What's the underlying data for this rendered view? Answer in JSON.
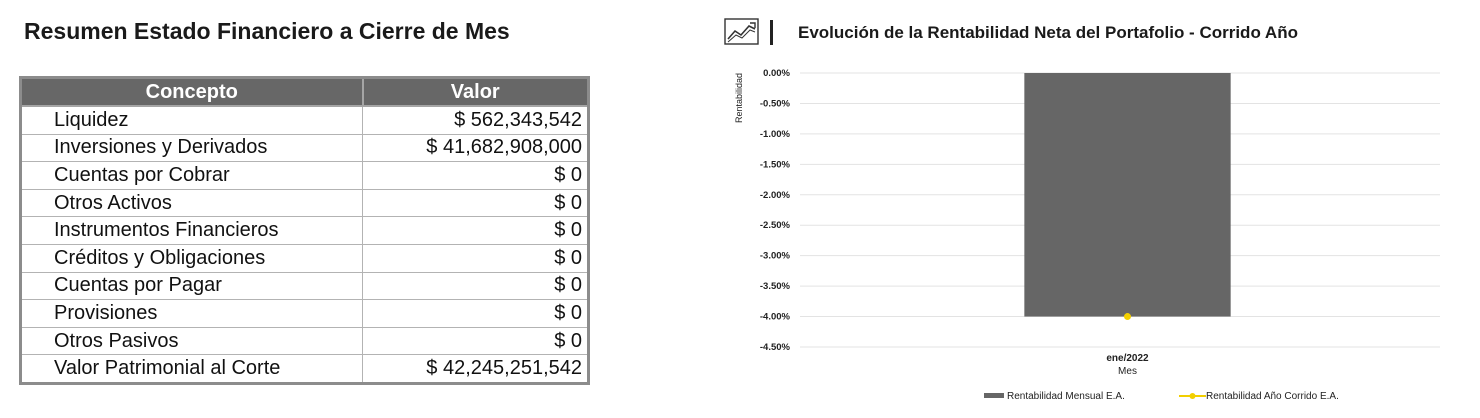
{
  "summary": {
    "title": "Resumen Estado Financiero a Cierre de Mes",
    "headers": {
      "concept": "Concepto",
      "value": "Valor"
    },
    "rows": [
      {
        "concept": "Liquidez",
        "value": "$ 562,343,542"
      },
      {
        "concept": "Inversiones y Derivados",
        "value": "$ 41,682,908,000"
      },
      {
        "concept": "Cuentas por Cobrar",
        "value": "$ 0"
      },
      {
        "concept": "Otros Activos",
        "value": "$ 0"
      },
      {
        "concept": "Instrumentos Financieros",
        "value": "$ 0"
      },
      {
        "concept": "Créditos y Obligaciones",
        "value": "$ 0"
      },
      {
        "concept": "Cuentas por Pagar",
        "value": "$ 0"
      },
      {
        "concept": "Provisiones",
        "value": "$ 0"
      },
      {
        "concept": "Otros Pasivos",
        "value": "$ 0"
      },
      {
        "concept": "Valor Patrimonial al Corte",
        "value": "$ 42,245,251,542"
      }
    ]
  },
  "chart_header": {
    "icon": "line-chart-icon"
  },
  "chart_data": {
    "type": "bar",
    "title": "Evolución de la Rentabilidad Neta del Portafolio - Corrido Año",
    "xlabel": "Mes",
    "ylabel": "Rentabilidad",
    "categories": [
      "ene/2022"
    ],
    "ylim": [
      -4.5,
      0
    ],
    "yticks": [
      0,
      -0.5,
      -1,
      -1.5,
      -2,
      -2.5,
      -3,
      -3.5,
      -4,
      -4.5
    ],
    "ytick_labels": [
      "0.00%",
      "-0.50%",
      "-1.00%",
      "-1.50%",
      "-2.00%",
      "-2.50%",
      "-3.00%",
      "-3.50%",
      "-4.00%",
      "-4.50%"
    ],
    "grid": true,
    "legend_position": "bottom",
    "series": [
      {
        "name": "Rentabilidad Mensual E.A.",
        "kind": "bar",
        "color": "#666666",
        "values": [
          -4.0
        ]
      },
      {
        "name": "Rentabilidad Año Corrido E.A.",
        "kind": "line",
        "color": "#f2cf00",
        "values": [
          -4.0
        ]
      }
    ]
  }
}
